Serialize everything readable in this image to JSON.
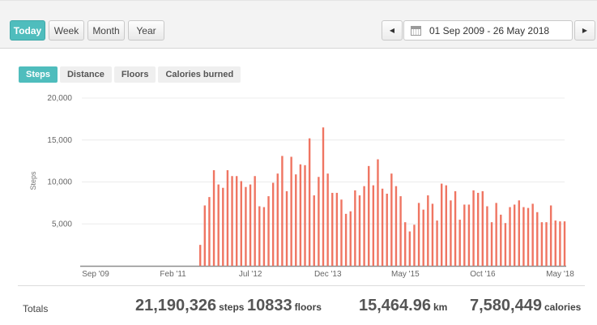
{
  "header": {
    "range_buttons": [
      {
        "label": "Today",
        "active": true
      },
      {
        "label": "Week",
        "active": false
      },
      {
        "label": "Month",
        "active": false
      },
      {
        "label": "Year",
        "active": false
      }
    ],
    "date_range": "01 Sep 2009 - 26 May 2018",
    "prev_icon": "triangle-left-icon",
    "next_icon": "triangle-right-icon",
    "calendar_icon": "calendar-icon"
  },
  "metric_tabs": [
    {
      "label": "Steps",
      "active": true
    },
    {
      "label": "Distance",
      "active": false
    },
    {
      "label": "Floors",
      "active": false
    },
    {
      "label": "Calories burned",
      "active": false
    }
  ],
  "chart_data": {
    "type": "bar",
    "ylabel": "Steps",
    "ylim": [
      0,
      20000
    ],
    "yticks": [
      {
        "value": 5000,
        "label": "5,000"
      },
      {
        "value": 10000,
        "label": "10,000"
      },
      {
        "value": 15000,
        "label": "15,000"
      },
      {
        "value": 20000,
        "label": "20,000"
      }
    ],
    "xticks": [
      {
        "index": 0,
        "label": "Sep '09"
      },
      {
        "index": 17,
        "label": "Feb '11"
      },
      {
        "index": 34,
        "label": "Jul '12"
      },
      {
        "index": 51,
        "label": "Dec '13"
      },
      {
        "index": 68,
        "label": "May '15"
      },
      {
        "index": 85,
        "label": "Oct '16"
      },
      {
        "index": 102,
        "label": "May '18"
      }
    ],
    "bar_color": "#ef7562",
    "values": [
      0,
      0,
      0,
      0,
      0,
      0,
      0,
      0,
      0,
      0,
      0,
      0,
      0,
      0,
      0,
      0,
      0,
      0,
      0,
      0,
      0,
      0,
      0,
      0,
      0,
      0,
      2500,
      7200,
      8200,
      11400,
      9700,
      9300,
      11400,
      10700,
      10700,
      10100,
      9400,
      9700,
      10700,
      7100,
      7000,
      8300,
      9900,
      11000,
      13100,
      8900,
      13000,
      10900,
      12100,
      12000,
      15200,
      8400,
      10600,
      16500,
      11000,
      8700,
      8700,
      7900,
      6200,
      6500,
      9000,
      8400,
      9500,
      11900,
      9600,
      12700,
      9200,
      8600,
      11000,
      9500,
      8300,
      5200,
      4100,
      4900,
      7500,
      6700,
      8400,
      7400,
      5400,
      9800,
      9600,
      7800,
      8900,
      5500,
      7300,
      7300,
      9000,
      8700,
      8900,
      7100,
      5200,
      7500,
      6100,
      5100,
      7000,
      7300,
      7800,
      7000,
      6900,
      7400,
      6400,
      5200,
      5200,
      7200,
      5400,
      5300,
      5300
    ]
  },
  "totals": {
    "label": "Totals",
    "steps_value": "21,190,326",
    "steps_unit": "steps",
    "floors_value": "10833",
    "floors_unit": "floors",
    "distance_value": "15,464.96",
    "distance_unit": "km",
    "calories_value": "7,580,449",
    "calories_unit": "calories"
  }
}
